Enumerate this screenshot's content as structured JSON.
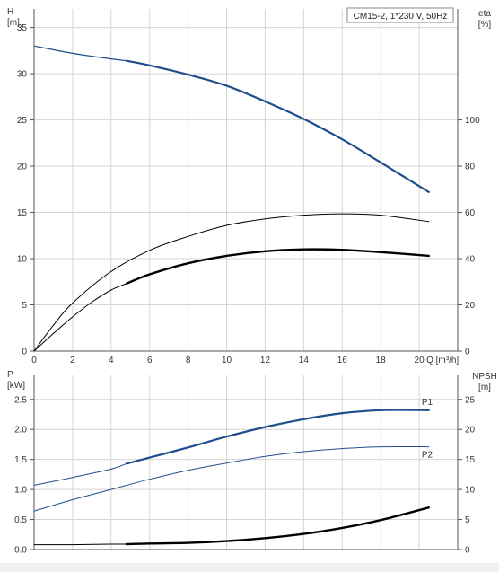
{
  "title": "CM15-2, 1*230 V, 50Hz",
  "colors": {
    "grid": "#d4d4d4",
    "axis": "#555555",
    "blue": "#1f4e8c",
    "black": "#000000",
    "p_label": "#2e6fa7"
  },
  "chart_data": [
    {
      "type": "line",
      "panel": "top",
      "grid": true,
      "ylabel_left": [
        "H",
        "[m]"
      ],
      "ylabel_right": [
        "eta",
        "[%]"
      ],
      "xlabel": "Q [m³/h]",
      "xlim": [
        0,
        22
      ],
      "ylim_left": [
        0,
        37
      ],
      "xticks": [
        0,
        2,
        4,
        6,
        8,
        10,
        12,
        14,
        16,
        18,
        20
      ],
      "yticks_left": [
        0,
        5,
        10,
        15,
        20,
        25,
        30,
        35
      ],
      "yticks_right": [
        {
          "at": 0,
          "label": "0"
        },
        {
          "at": 5,
          "label": "20"
        },
        {
          "at": 10,
          "label": "40"
        },
        {
          "at": 15,
          "label": "60"
        },
        {
          "at": 20,
          "label": "80"
        },
        {
          "at": 25,
          "label": "100"
        }
      ],
      "series": [
        {
          "id": "H-thin",
          "color": "blue",
          "width": 1.2,
          "x": [
            0,
            2,
            4,
            4.8
          ],
          "y": [
            33.0,
            32.2,
            31.6,
            31.4
          ]
        },
        {
          "id": "H",
          "color": "blue",
          "width": 2.2,
          "x": [
            4.8,
            6,
            8,
            10,
            12,
            14,
            16,
            18,
            20.5
          ],
          "y": [
            31.4,
            30.9,
            29.9,
            28.7,
            27.0,
            25.1,
            22.9,
            20.4,
            17.2
          ]
        },
        {
          "id": "eta-upper",
          "color": "black",
          "width": 1,
          "x": [
            0,
            1,
            2,
            4,
            6,
            8,
            10,
            12,
            14,
            16,
            18,
            20.5
          ],
          "y": [
            0,
            2.8,
            5.2,
            8.6,
            10.9,
            12.4,
            13.6,
            14.3,
            14.7,
            14.85,
            14.7,
            14.0
          ]
        },
        {
          "id": "eta-thin",
          "color": "black",
          "width": 1,
          "x": [
            0,
            1,
            2,
            3,
            4,
            4.8
          ],
          "y": [
            0,
            1.9,
            3.7,
            5.3,
            6.6,
            7.3
          ]
        },
        {
          "id": "eta",
          "color": "black",
          "width": 2.4,
          "x": [
            4.8,
            6,
            8,
            10,
            12,
            14,
            16,
            18,
            20.5
          ],
          "y": [
            7.3,
            8.3,
            9.5,
            10.3,
            10.8,
            11.0,
            10.95,
            10.7,
            10.3
          ]
        }
      ]
    },
    {
      "type": "line",
      "panel": "bottom",
      "grid": true,
      "ylabel_left": [
        "P",
        "[kW]"
      ],
      "ylabel_right": [
        "NPSH",
        "[m]"
      ],
      "xlim": [
        0,
        22
      ],
      "ylim_left": [
        0,
        2.9
      ],
      "xticks": [
        0,
        2,
        4,
        6,
        8,
        10,
        12,
        14,
        16,
        18,
        20
      ],
      "yticks_left": [
        {
          "at": 0,
          "label": "0.0"
        },
        {
          "at": 0.5,
          "label": "0.5"
        },
        {
          "at": 1.0,
          "label": "1.0"
        },
        {
          "at": 1.5,
          "label": "1.5"
        },
        {
          "at": 2.0,
          "label": "2.0"
        },
        {
          "at": 2.5,
          "label": "2.5"
        }
      ],
      "yticks_right": [
        {
          "at": 0,
          "label": "0"
        },
        {
          "at": 0.5,
          "label": "5"
        },
        {
          "at": 1.0,
          "label": "10"
        },
        {
          "at": 1.5,
          "label": "15"
        },
        {
          "at": 2.0,
          "label": "20"
        },
        {
          "at": 2.5,
          "label": "25"
        }
      ],
      "series": [
        {
          "id": "P1-thin",
          "color": "blue",
          "width": 1,
          "x": [
            0,
            2,
            4,
            4.8
          ],
          "y": [
            1.07,
            1.2,
            1.34,
            1.43
          ]
        },
        {
          "id": "P1",
          "name": "P1",
          "color": "blue",
          "width": 2.2,
          "x": [
            4.8,
            6,
            8,
            10,
            12,
            14,
            16,
            18,
            20.5
          ],
          "y": [
            1.43,
            1.53,
            1.7,
            1.88,
            2.04,
            2.17,
            2.27,
            2.32,
            2.32
          ]
        },
        {
          "id": "P2",
          "name": "P2",
          "color": "blue",
          "width": 1,
          "x": [
            0,
            2,
            4,
            6,
            8,
            10,
            12,
            14,
            16,
            18,
            20.5
          ],
          "y": [
            0.64,
            0.83,
            1.0,
            1.17,
            1.32,
            1.44,
            1.55,
            1.63,
            1.68,
            1.71,
            1.71
          ]
        },
        {
          "id": "NPSH-thin",
          "color": "black",
          "width": 1,
          "x": [
            0,
            2,
            4,
            4.8
          ],
          "y": [
            0.08,
            0.08,
            0.09,
            0.09
          ]
        },
        {
          "id": "NPSH",
          "color": "black",
          "width": 2.4,
          "x": [
            4.8,
            6,
            8,
            10,
            12,
            14,
            16,
            18,
            20.5
          ],
          "y": [
            0.09,
            0.1,
            0.11,
            0.14,
            0.19,
            0.26,
            0.36,
            0.49,
            0.7
          ]
        }
      ],
      "labels": [
        {
          "text": "P1",
          "series": "P1"
        },
        {
          "text": "P2",
          "series": "P2"
        }
      ]
    }
  ]
}
